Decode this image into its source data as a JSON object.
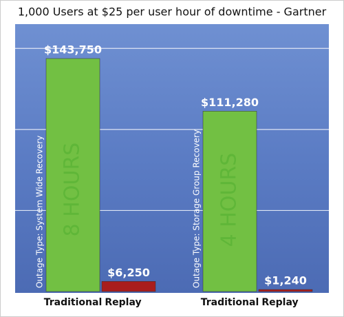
{
  "chart_data": {
    "type": "grouped-bar",
    "title": "1,000 Users at $25 per user hour of downtime - Gartner",
    "ylim": [
      0,
      165000
    ],
    "gridlines": [
      50000,
      100000,
      150000
    ],
    "colors": [
      "#72c043",
      "#a91d1d"
    ],
    "groups": [
      {
        "outage_type": "Outage Type: System Wide Recovery",
        "duration": "8 HOURS",
        "categories": [
          "Traditional",
          "Replay"
        ],
        "values": [
          143750,
          6250
        ],
        "value_labels": [
          "$143,750",
          "$6,250"
        ]
      },
      {
        "outage_type": "Outage Type: Storage Group Recovery",
        "duration": "4 HOURS",
        "categories": [
          "Traditional",
          "Replay"
        ],
        "values": [
          111280,
          1240
        ],
        "value_labels": [
          "$111,280",
          "$1,240"
        ]
      }
    ]
  }
}
